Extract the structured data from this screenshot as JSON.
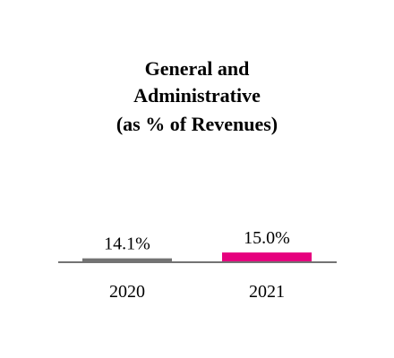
{
  "chart_data": {
    "type": "bar",
    "title": [
      "General and",
      "Administrative",
      "(as % of Revenues)"
    ],
    "categories": [
      "2020",
      "2021"
    ],
    "values": [
      14.1,
      15.0
    ],
    "value_labels": [
      "14.1%",
      "15.0%"
    ],
    "colors": [
      "#737373",
      "#e6007e"
    ],
    "axis_color": "#737373",
    "ylim": [
      13.5,
      15.5
    ],
    "grid": false,
    "legend": "none"
  }
}
